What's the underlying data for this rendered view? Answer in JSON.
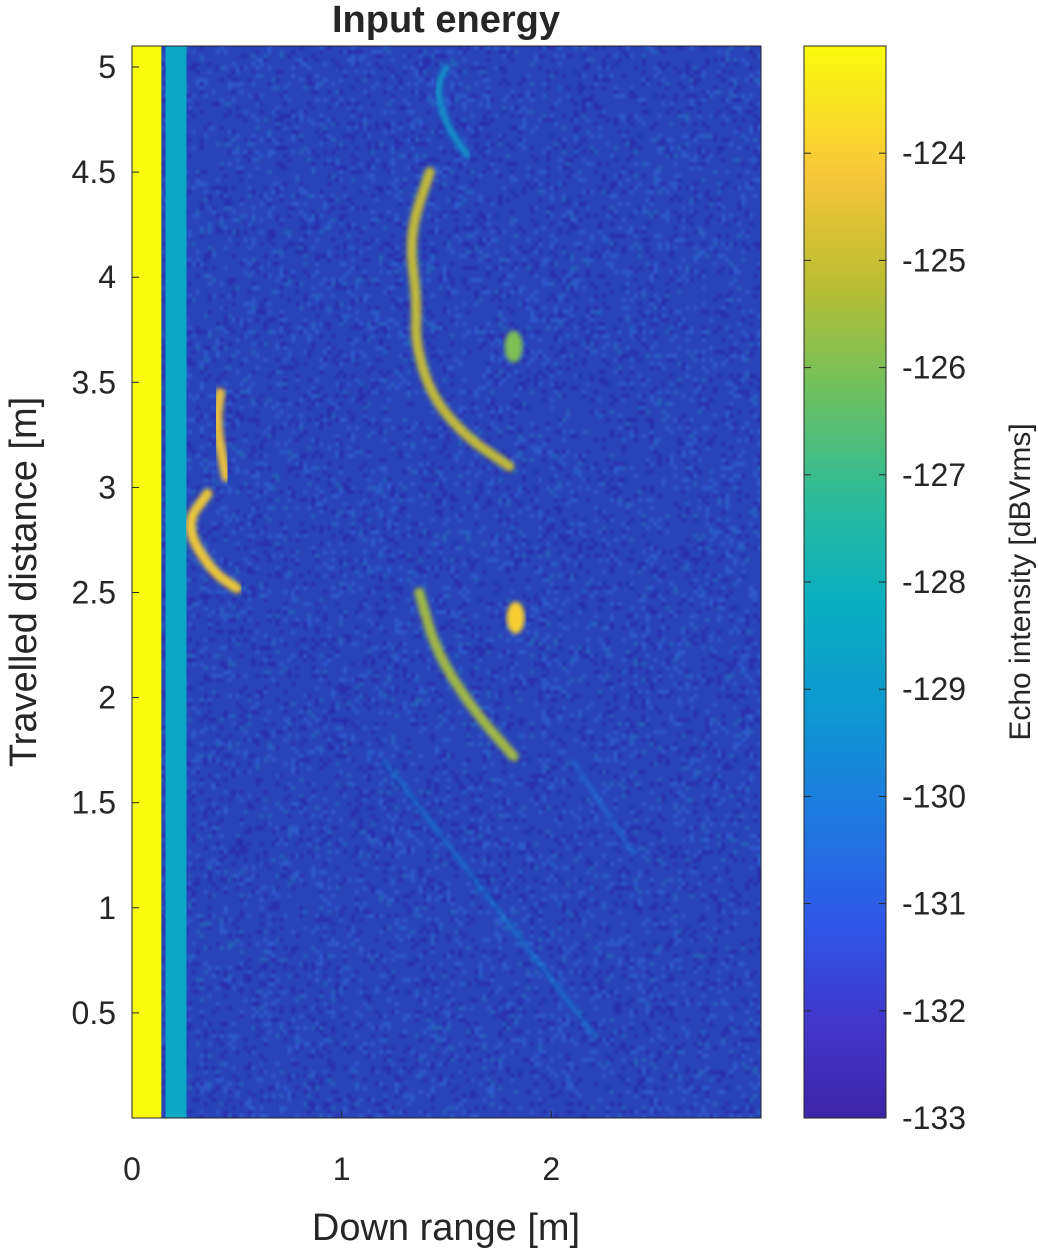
{
  "chart_data": {
    "type": "heatmap",
    "title": "Input energy",
    "xlabel": "Down range [m]",
    "ylabel": "Travelled distance [m]",
    "xlim": [
      0,
      3.0
    ],
    "ylim": [
      0,
      5.1
    ],
    "x_ticks": [
      0,
      1,
      2
    ],
    "x_tick_labels": [
      "0",
      "1",
      "2"
    ],
    "y_ticks": [
      0.5,
      1,
      1.5,
      2,
      2.5,
      3,
      3.5,
      4,
      4.5,
      5
    ],
    "y_tick_labels": [
      "0.5",
      "1",
      "1.5",
      "2",
      "2.5",
      "3",
      "3.5",
      "4",
      "4.5",
      "5"
    ],
    "colorbar": {
      "label": "Echo intensity [dBVrms]",
      "limits": [
        -133,
        -123
      ],
      "ticks": [
        -124,
        -125,
        -126,
        -127,
        -128,
        -129,
        -130,
        -131,
        -132,
        -133
      ],
      "tick_labels": [
        "-124",
        "-125",
        "-126",
        "-127",
        "-128",
        "-129",
        "-130",
        "-131",
        "-132",
        "-133"
      ],
      "colormap": "parula"
    },
    "background_level": -132,
    "features": [
      {
        "name": "direct path band",
        "kind": "band",
        "x_range": [
          0.0,
          0.14
        ],
        "level": -123
      },
      {
        "name": "secondary band",
        "kind": "band",
        "x_range": [
          0.16,
          0.26
        ],
        "level": -128.5
      },
      {
        "name": "echo A",
        "kind": "arc",
        "points": [
          [
            0.42,
            3.45
          ],
          [
            0.4,
            3.3
          ],
          [
            0.45,
            3.05
          ]
        ],
        "level": -124.3
      },
      {
        "name": "echo B",
        "kind": "arc",
        "points": [
          [
            0.36,
            2.97
          ],
          [
            0.25,
            2.82
          ],
          [
            0.38,
            2.6
          ],
          [
            0.5,
            2.52
          ]
        ],
        "level": -124
      },
      {
        "name": "echo C upper",
        "kind": "arc",
        "points": [
          [
            1.5,
            5.0
          ],
          [
            1.45,
            4.9
          ],
          [
            1.5,
            4.72
          ],
          [
            1.6,
            4.58
          ]
        ],
        "level": -129
      },
      {
        "name": "echo C",
        "kind": "arc",
        "points": [
          [
            1.42,
            4.5
          ],
          [
            1.32,
            4.2
          ],
          [
            1.36,
            3.88
          ],
          [
            1.35,
            3.7
          ],
          [
            1.42,
            3.45
          ],
          [
            1.58,
            3.25
          ],
          [
            1.8,
            3.1
          ]
        ],
        "level": -125
      },
      {
        "name": "echo D",
        "kind": "arc",
        "points": [
          [
            1.37,
            2.5
          ],
          [
            1.45,
            2.22
          ],
          [
            1.62,
            1.95
          ],
          [
            1.82,
            1.72
          ]
        ],
        "level": -125.5
      },
      {
        "name": "echo E",
        "kind": "spot",
        "points": [
          [
            1.83,
            2.38
          ]
        ],
        "level": -124
      },
      {
        "name": "echo F",
        "kind": "spot",
        "points": [
          [
            1.82,
            3.67
          ]
        ],
        "level": -126
      },
      {
        "name": "diagonal streak 1",
        "kind": "line",
        "points": [
          [
            1.2,
            1.7
          ],
          [
            2.2,
            0.4
          ]
        ],
        "level": -129.5
      },
      {
        "name": "diagonal streak 2",
        "kind": "line",
        "points": [
          [
            2.1,
            1.7
          ],
          [
            2.4,
            1.25
          ]
        ],
        "level": -130
      },
      {
        "name": "vertical streak",
        "kind": "line",
        "points": [
          [
            2.36,
            5.0
          ],
          [
            2.36,
            0.1
          ]
        ],
        "level": -131
      }
    ]
  }
}
